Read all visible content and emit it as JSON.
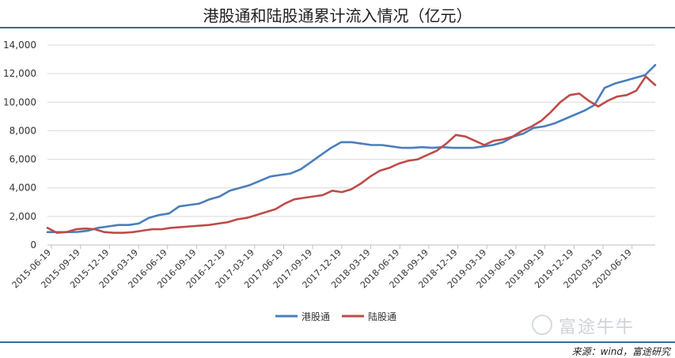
{
  "chart_data": {
    "type": "line",
    "title": "港股通和陆股通累计流入情况（亿元）",
    "source": "来源：wind，富途研究",
    "watermark": "富途牛牛",
    "ylim": [
      0,
      14000
    ],
    "yticks": [
      "0",
      "2,000",
      "4,000",
      "6,000",
      "8,000",
      "10,000",
      "12,000",
      "14,000"
    ],
    "xticks": [
      "2015-06-19",
      "2015-09-19",
      "2015-12-19",
      "2016-03-19",
      "2016-06-19",
      "2016-09-19",
      "2016-12-19",
      "2017-03-19",
      "2017-06-19",
      "2017-09-19",
      "2017-12-19",
      "2018-03-19",
      "2018-06-19",
      "2018-09-19",
      "2018-12-19",
      "2019-03-19",
      "2019-06-19",
      "2019-09-19",
      "2019-12-19",
      "2020-03-19",
      "2020-06-19"
    ],
    "grid": true,
    "legend": "bottom",
    "series": [
      {
        "name": "港股通",
        "color": "#4a7ebb",
        "values": [
          900,
          900,
          900,
          920,
          1000,
          1200,
          1300,
          1400,
          1400,
          1500,
          1900,
          2100,
          2200,
          2700,
          2800,
          2900,
          3200,
          3400,
          3800,
          4000,
          4200,
          4500,
          4800,
          4900,
          5000,
          5300,
          5800,
          6300,
          6800,
          7200,
          7200,
          7100,
          7000,
          7000,
          6900,
          6800,
          6800,
          6850,
          6800,
          6850,
          6800,
          6800,
          6800,
          6900,
          7000,
          7200,
          7600,
          7800,
          8200,
          8300,
          8500,
          8800,
          9100,
          9400,
          9800,
          11000,
          11300,
          11500,
          11700,
          11900,
          12600
        ]
      },
      {
        "name": "陆股通",
        "color": "#be4b48",
        "values": [
          1200,
          850,
          900,
          1100,
          1150,
          1100,
          900,
          850,
          850,
          900,
          1000,
          1100,
          1100,
          1200,
          1250,
          1300,
          1350,
          1400,
          1500,
          1600,
          1800,
          1900,
          2100,
          2300,
          2500,
          2900,
          3200,
          3300,
          3400,
          3500,
          3800,
          3700,
          3900,
          4300,
          4800,
          5200,
          5400,
          5700,
          5900,
          6000,
          6300,
          6600,
          7100,
          7700,
          7600,
          7300,
          7000,
          7300,
          7400,
          7600,
          8000,
          8300,
          8700,
          9300,
          10000,
          10500,
          10600,
          10100,
          9700,
          10100,
          10400,
          10500,
          10800,
          11800,
          11200
        ]
      }
    ]
  }
}
